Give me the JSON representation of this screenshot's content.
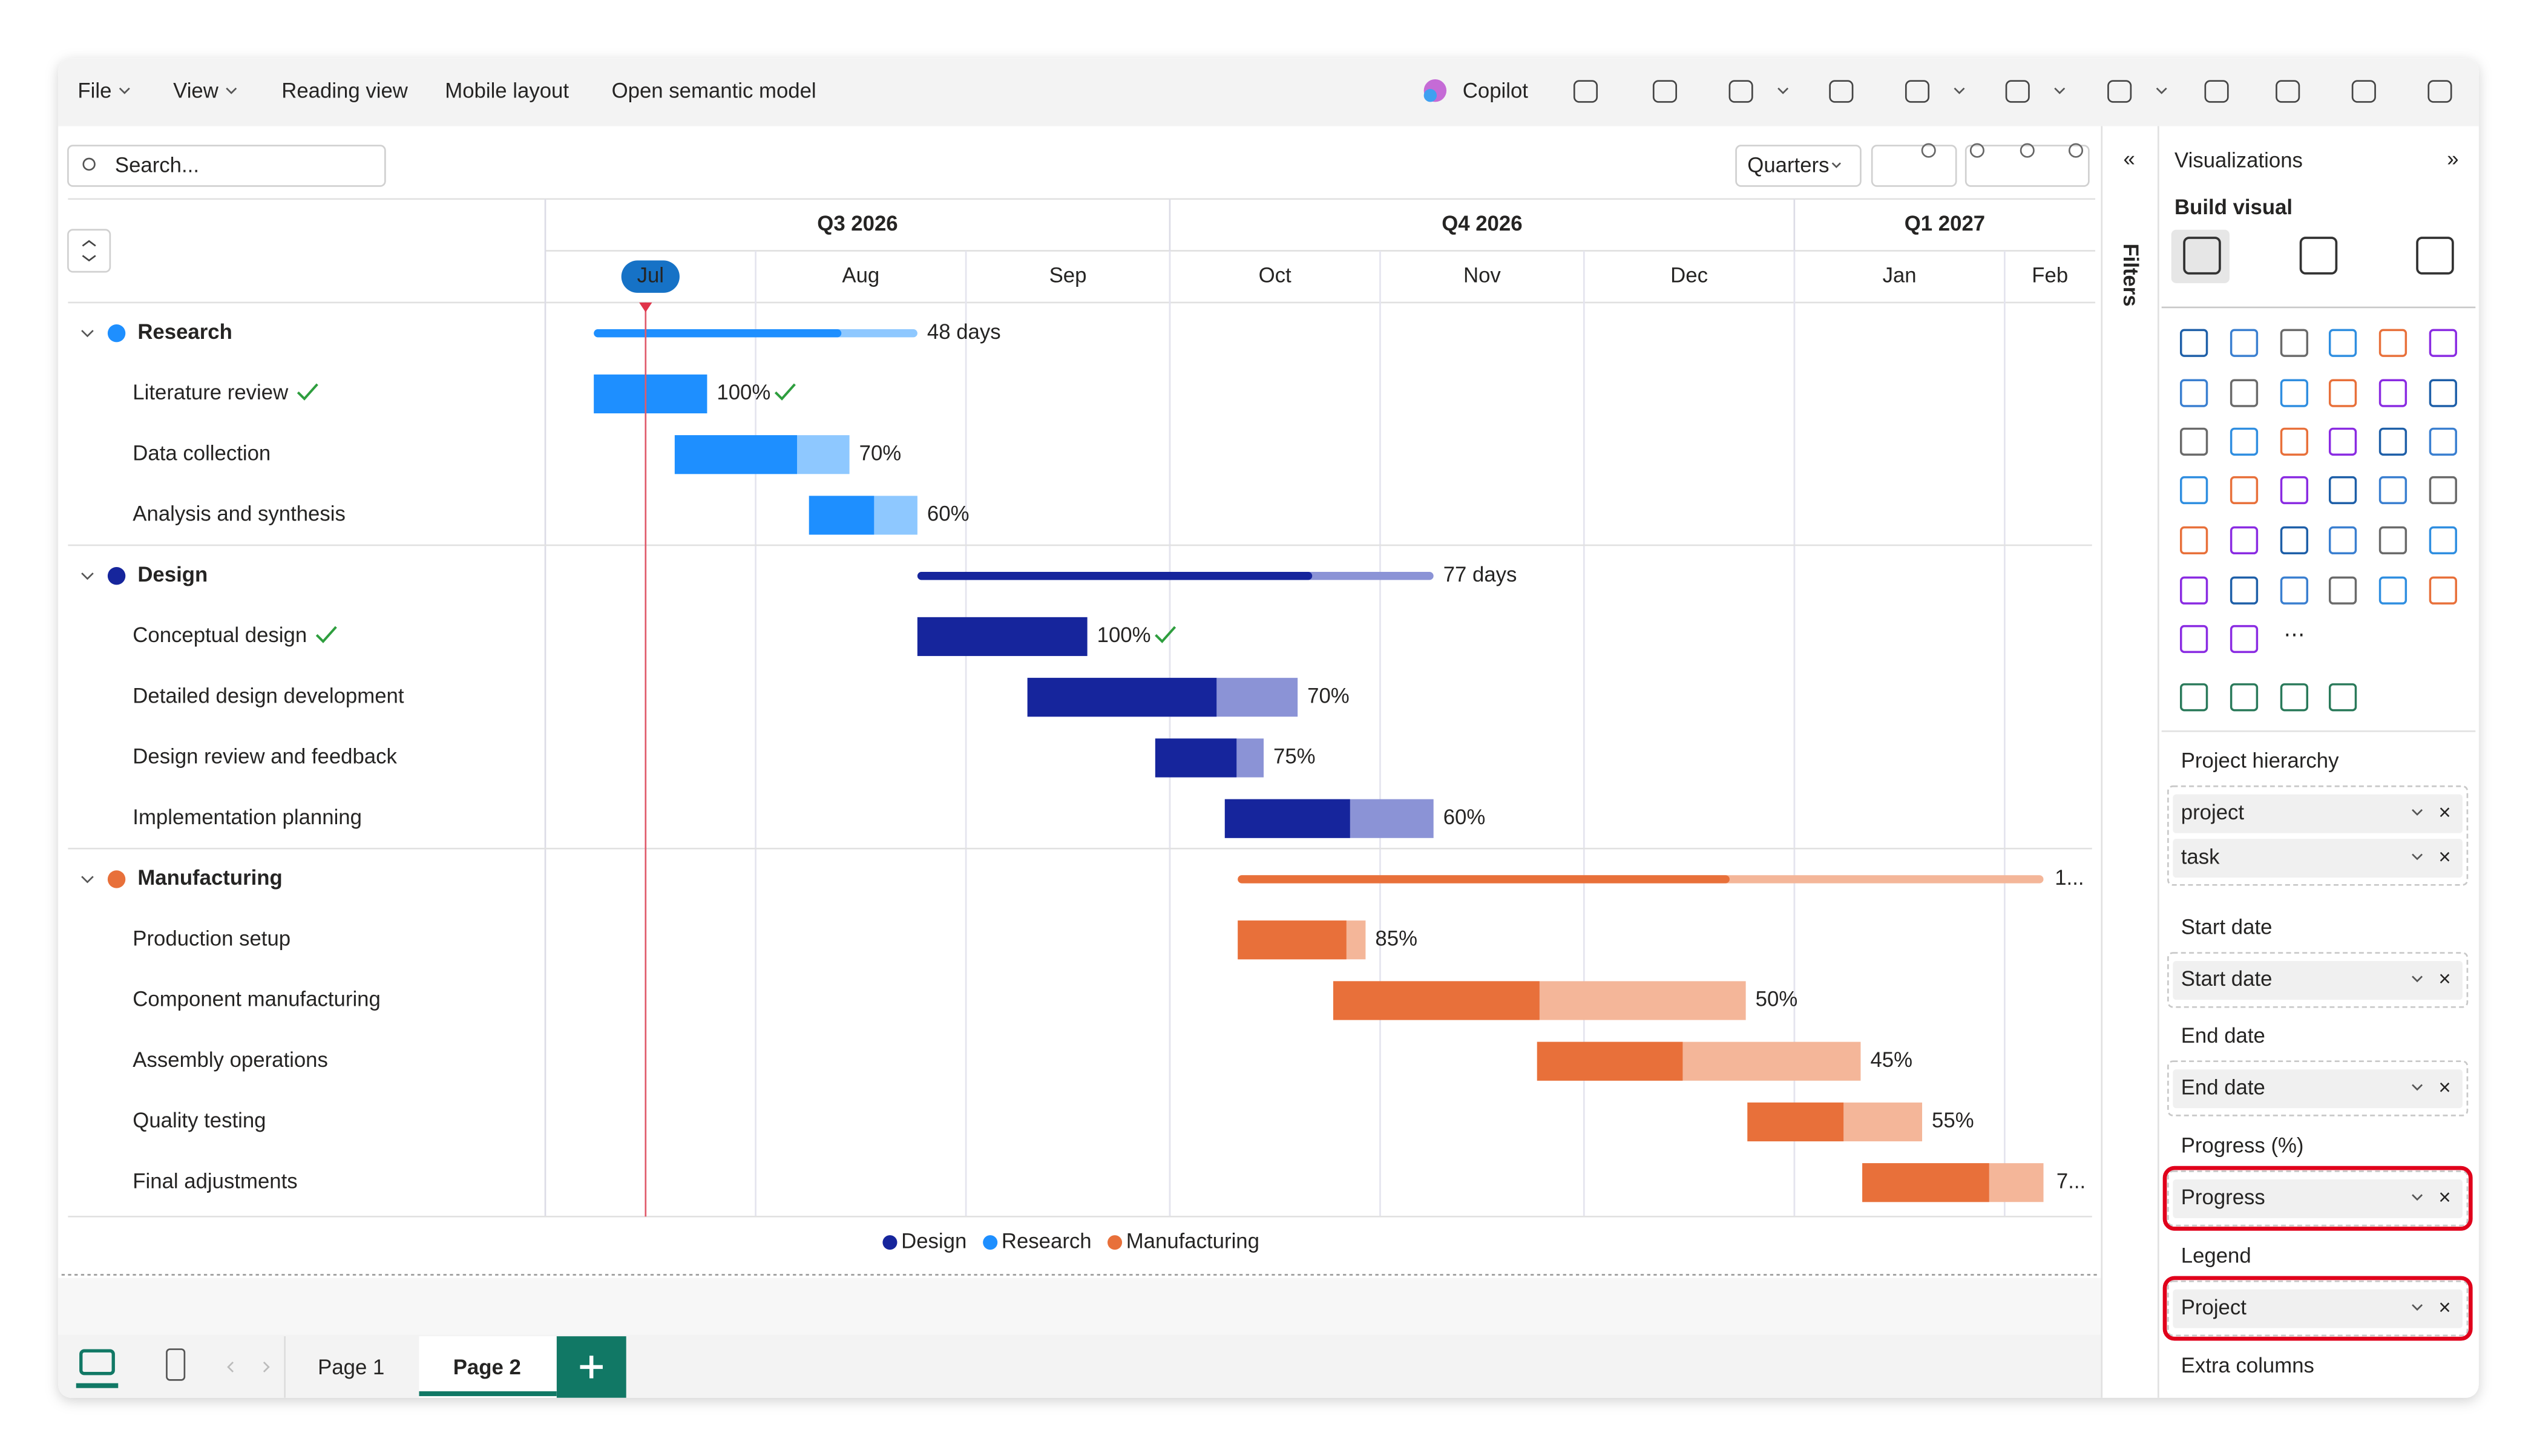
{
  "menu": [
    "File",
    "View",
    "Reading view",
    "Mobile layout",
    "Open semantic model"
  ],
  "copilot": "Copilot",
  "search_placeholder": "Search...",
  "timescale_button": "Quarters",
  "quarters": [
    "Q3 2026",
    "Q4 2026",
    "Q1 2027"
  ],
  "months": [
    "Jul",
    "Aug",
    "Sep",
    "Oct",
    "Nov",
    "Dec",
    "Jan",
    "Feb"
  ],
  "groups": [
    {
      "name": "Research",
      "color": "#1e8fff",
      "light_color": "#8ec8ff",
      "summary_label": "48 days",
      "tasks": [
        {
          "name": "Literature review",
          "done": true,
          "progress": 100,
          "progress_label": "100%"
        },
        {
          "name": "Data collection",
          "done": false,
          "progress": 70,
          "progress_label": "70%"
        },
        {
          "name": "Analysis and synthesis",
          "done": false,
          "progress": 60,
          "progress_label": "60%"
        }
      ]
    },
    {
      "name": "Design",
      "color": "#16259c",
      "light_color": "#8b93d6",
      "summary_label": "77 days",
      "tasks": [
        {
          "name": "Conceptual design",
          "done": true,
          "progress": 100,
          "progress_label": "100%"
        },
        {
          "name": "Detailed design development",
          "done": false,
          "progress": 70,
          "progress_label": "70%"
        },
        {
          "name": "Design review and feedback",
          "done": false,
          "progress": 75,
          "progress_label": "75%"
        },
        {
          "name": "Implementation planning",
          "done": false,
          "progress": 60,
          "progress_label": "60%"
        }
      ]
    },
    {
      "name": "Manufacturing",
      "color": "#e8703a",
      "light_color": "#f4b699",
      "summary_label": "1...",
      "tasks": [
        {
          "name": "Production setup",
          "done": false,
          "progress": 85,
          "progress_label": "85%"
        },
        {
          "name": "Component manufacturing",
          "done": false,
          "progress": 50,
          "progress_label": "50%"
        },
        {
          "name": "Assembly operations",
          "done": false,
          "progress": 45,
          "progress_label": "45%"
        },
        {
          "name": "Quality testing",
          "done": false,
          "progress": 55,
          "progress_label": "55%"
        },
        {
          "name": "Final adjustments",
          "done": false,
          "progress": 70,
          "progress_label": "7..."
        }
      ]
    }
  ],
  "legend": [
    "Design",
    "Research",
    "Manufacturing"
  ],
  "filters_label": "Filters",
  "viz_pane": {
    "title": "Visualizations",
    "subtitle": "Build visual",
    "sections": [
      {
        "label": "Project hierarchy",
        "wells": [
          "project",
          "task"
        ],
        "highlighted": false
      },
      {
        "label": "Start date",
        "wells": [
          "Start date"
        ],
        "highlighted": false
      },
      {
        "label": "End date",
        "wells": [
          "End date"
        ],
        "highlighted": false
      },
      {
        "label": "Progress (%)",
        "wells": [
          "Progress"
        ],
        "highlighted": true
      },
      {
        "label": "Legend",
        "wells": [
          "Project"
        ],
        "highlighted": true
      },
      {
        "label": "Extra columns",
        "wells": [],
        "highlighted": false
      }
    ]
  },
  "pages": [
    "Page 1",
    "Page 2"
  ]
}
